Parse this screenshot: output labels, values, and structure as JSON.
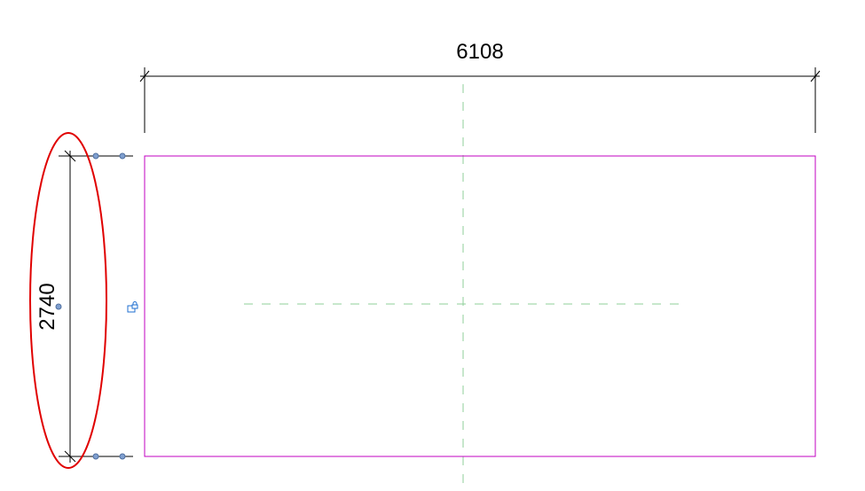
{
  "drawing": {
    "horizontal_dimension": {
      "value": "6108"
    },
    "vertical_dimension": {
      "value": "2740"
    }
  },
  "colors": {
    "rectangle": "#c000c0",
    "reference_plane": "#8fcf9a",
    "dimension": "#000000",
    "highlight_ellipse": "#e00000",
    "grip": "#7f9fcf",
    "lock_icon": "#1f6fd0"
  },
  "icons": {
    "lock": "padlock-icon"
  }
}
